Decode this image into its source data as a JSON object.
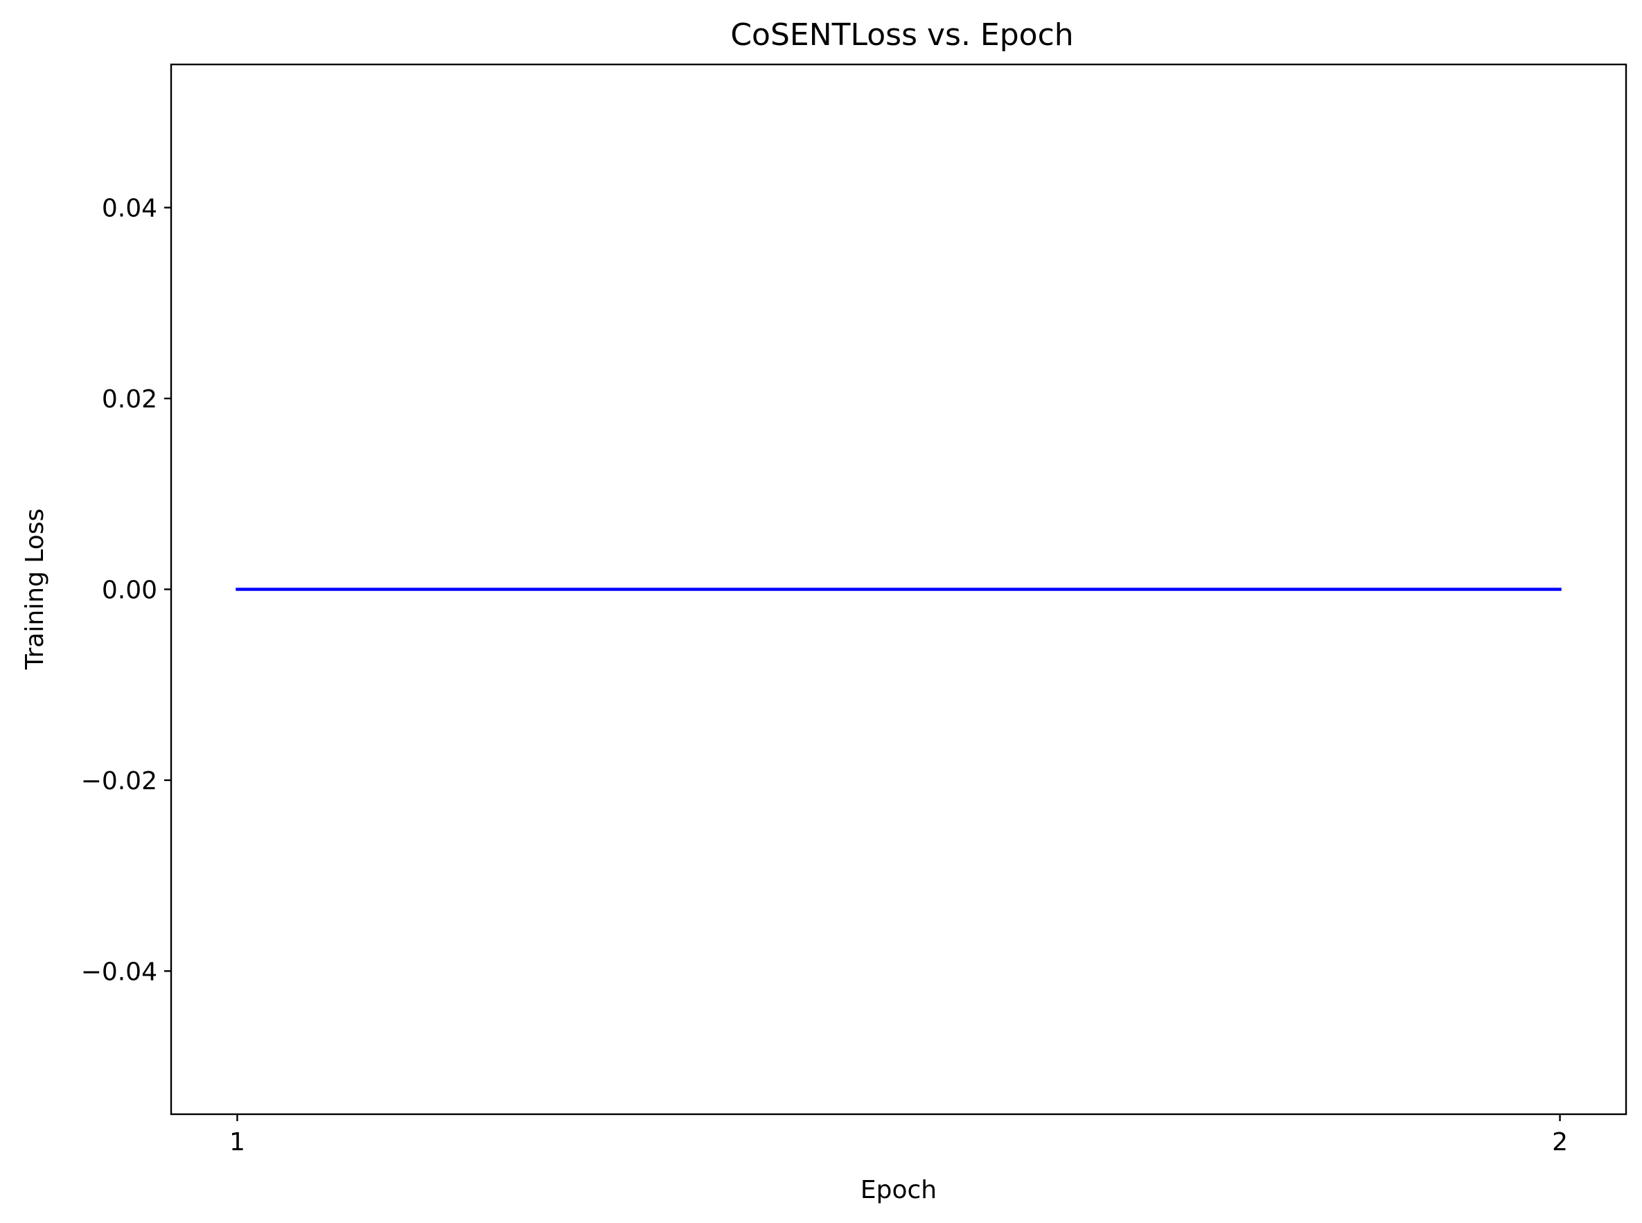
{
  "chart_data": {
    "type": "line",
    "title": "CoSENTLoss vs. Epoch",
    "xlabel": "Epoch",
    "ylabel": "Training Loss",
    "x": [
      1,
      2
    ],
    "series": [
      {
        "values": [
          0,
          0
        ],
        "color": "#0000ff"
      }
    ],
    "xlim": [
      0.95,
      2.05
    ],
    "ylim": [
      -0.055,
      0.055
    ],
    "xticks": [
      {
        "value": 1,
        "label": "1"
      },
      {
        "value": 2,
        "label": "2"
      }
    ],
    "yticks": [
      {
        "value": 0.04,
        "label": "0.04"
      },
      {
        "value": 0.02,
        "label": "0.02"
      },
      {
        "value": 0.0,
        "label": "0.00"
      },
      {
        "value": -0.02,
        "label": "−0.02"
      },
      {
        "value": -0.04,
        "label": "−0.04"
      }
    ],
    "grid": false,
    "legend": "none"
  }
}
